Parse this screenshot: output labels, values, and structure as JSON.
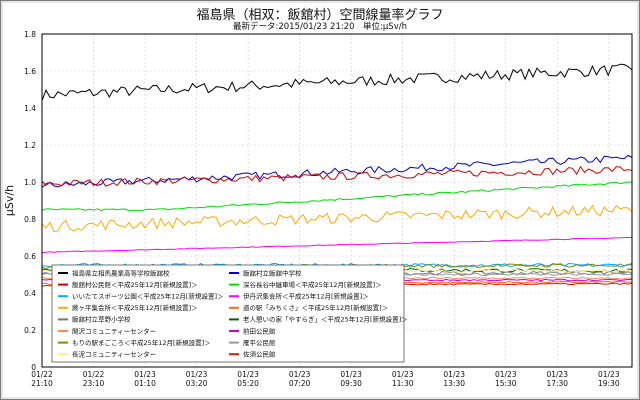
{
  "title": "福島県（相双：飯舘村）空間線量率グラフ",
  "subtitle": "最新データ:2015/01/23 21:20　単位:μSv/h",
  "chart_data": {
    "type": "line",
    "title": "福島県（相双：飯舘村）空間線量率グラフ",
    "subtitle": "最新データ:2015/01/23 21:20　単位:μSv/h",
    "ylabel": "μSv/h",
    "xlabel": "",
    "ylim": [
      0,
      1.8
    ],
    "yticks": [
      "0",
      "0.2",
      "0.4",
      "0.6",
      "0.8",
      "1.0",
      "1.2",
      "1.4",
      "1.6",
      "1.8"
    ],
    "x_ticks": [
      {
        "date": "01/22",
        "time": "21:10"
      },
      {
        "date": "01/22",
        "time": "23:10"
      },
      {
        "date": "01/23",
        "time": "01:10"
      },
      {
        "date": "01/23",
        "time": "03:20"
      },
      {
        "date": "01/23",
        "time": "05:20"
      },
      {
        "date": "01/23",
        "time": "07:20"
      },
      {
        "date": "01/23",
        "time": "09:30"
      },
      {
        "date": "01/23",
        "time": "11:30"
      },
      {
        "date": "01/23",
        "time": "13:30"
      },
      {
        "date": "01/23",
        "time": "15:30"
      },
      {
        "date": "01/23",
        "time": "17:30"
      },
      {
        "date": "01/23",
        "time": "19:30"
      }
    ],
    "grid": true,
    "legend_position": "bottom-left",
    "series": [
      {
        "name": "福島県立相馬農業高等学校飯舘校",
        "color": "#000000",
        "start": 1.47,
        "end": 1.61,
        "noise": 0.03
      },
      {
        "name": "飯舘村立飯舘中学校",
        "color": "#0000cc",
        "start": 0.98,
        "end": 1.13,
        "noise": 0.02
      },
      {
        "name": "飯舘村公民館＜平成25年12月[新規設置]＞",
        "color": "#cc0000",
        "start": 0.99,
        "end": 1.07,
        "noise": 0.02
      },
      {
        "name": "深谷長谷中継車場＜平成25年12月[新規設置]＞",
        "color": "#00dd00",
        "start": 0.85,
        "end": 1.0,
        "noise": 0.006
      },
      {
        "name": "いいたてスポーツ公園＜平成25年12月[新規設置]＞",
        "color": "#00aaff",
        "start": 0.55,
        "end": 0.55,
        "noise": 0.01
      },
      {
        "name": "伊丹沢集会所＜平成25年12月[新規設置]＞",
        "color": "#ff00ff",
        "start": 0.62,
        "end": 0.7,
        "noise": 0.002
      },
      {
        "name": "蕨ヶ平集会所＜平成25年12月[新規設置]＞",
        "color": "#ffaa00",
        "start": 0.76,
        "end": 0.85,
        "noise": 0.03
      },
      {
        "name": "道の駅「みちくさ」＜平成25年12月[新規設置]＞",
        "color": "#ff6600",
        "start": 0.45,
        "end": 0.46,
        "noise": 0.004
      },
      {
        "name": "飯舘村立草野小学校",
        "color": "#777777",
        "start": 0.5,
        "end": 0.51,
        "noise": 0.01
      },
      {
        "name": "老人憩いの家「やすらぎ」＜平成25年12月[新規設置]＞",
        "color": "#006600",
        "start": 0.53,
        "end": 0.52,
        "noise": 0.01
      },
      {
        "name": "関沢コミュニティーセンター",
        "color": "#ff8855",
        "start": 0.48,
        "end": 0.48,
        "noise": 0.005
      },
      {
        "name": "前田公民館",
        "color": "#cc00cc",
        "start": 0.47,
        "end": 0.47,
        "noise": 0.004
      },
      {
        "name": "もりの駅まごころ＜平成25年12月[新規設置]＞",
        "color": "#888800",
        "start": 0.54,
        "end": 0.55,
        "noise": 0.01
      },
      {
        "name": "雁平公民館",
        "color": "#999999",
        "start": 0.5,
        "end": 0.5,
        "noise": 0.006
      },
      {
        "name": "長泥コミュニティーセンター",
        "color": "#ffee88",
        "start": 0.52,
        "end": 0.52,
        "noise": 0.008
      },
      {
        "name": "佐須公民館",
        "color": "#cc2200",
        "start": 0.44,
        "end": 0.45,
        "noise": 0.004
      }
    ]
  }
}
